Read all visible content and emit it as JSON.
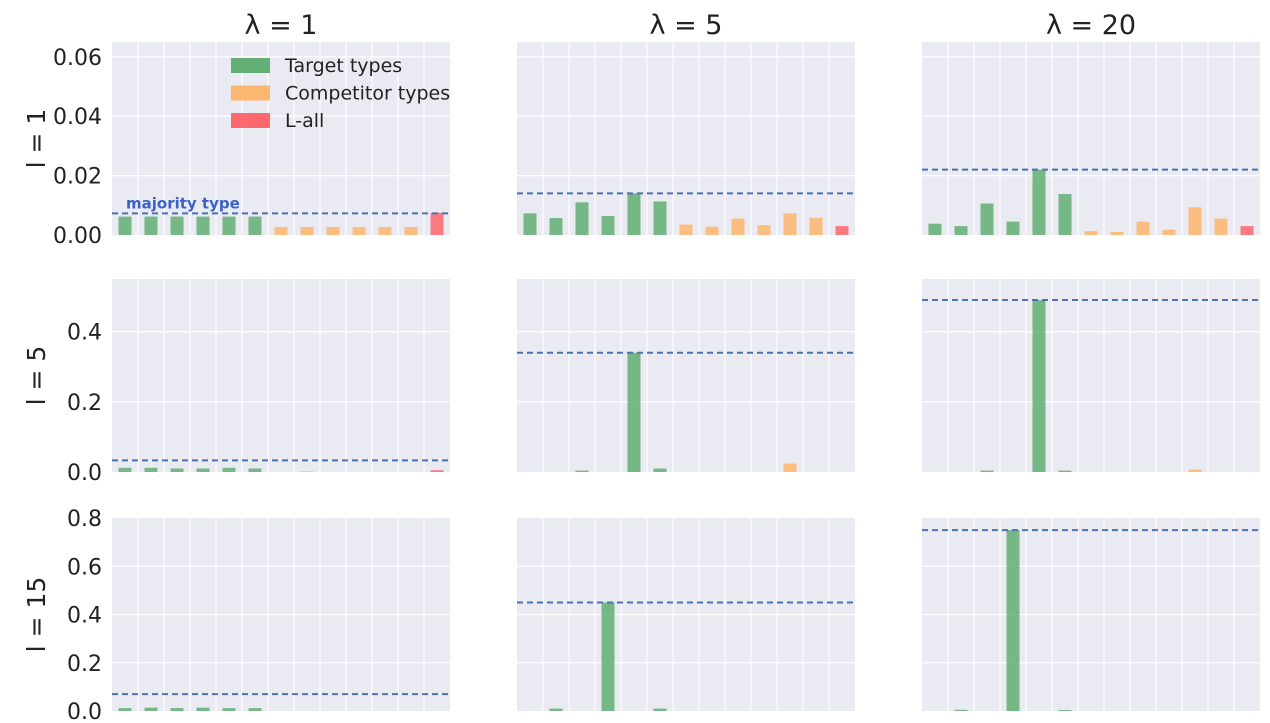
{
  "legend": {
    "items": [
      {
        "label": "Target types",
        "color": "#55a868"
      },
      {
        "label": "Competitor types",
        "color": "#ffb060"
      },
      {
        "label": "L-all",
        "color": "#ff5a5f"
      }
    ],
    "placement": "top-center of first panel"
  },
  "annotation": {
    "text": "majority type",
    "color": "#3a62c9"
  },
  "colors": {
    "target": "#55a868",
    "competitor": "#ffb060",
    "lall": "#ff5a5f",
    "refline": "#4c72b0",
    "panel_bg": "#eaeaf2",
    "grid": "#ffffff"
  },
  "col_titles": [
    "λ = 1",
    "λ = 5",
    "λ = 20"
  ],
  "row_labels": [
    "l = 1",
    "l = 5",
    "l = 15"
  ],
  "rows": [
    {
      "yticks": [
        "0.00",
        "0.02",
        "0.04",
        "0.06"
      ],
      "tick_values": [
        0,
        0.02,
        0.04,
        0.06
      ],
      "ylim": [
        0,
        0.065
      ]
    },
    {
      "yticks": [
        "0.0",
        "0.2",
        "0.4"
      ],
      "tick_values": [
        0,
        0.2,
        0.4
      ],
      "ylim": [
        0,
        0.55
      ]
    },
    {
      "yticks": [
        "0.0",
        "0.2",
        "0.4",
        "0.6",
        "0.8"
      ],
      "tick_values": [
        0,
        0.2,
        0.4,
        0.6,
        0.8
      ],
      "ylim": [
        0,
        0.8
      ]
    }
  ],
  "chart_data": {
    "type": "bar",
    "grid": true,
    "categories": 13,
    "category_groups": [
      "Target types",
      "Target types",
      "Target types",
      "Target types",
      "Target types",
      "Target types",
      "Competitor types",
      "Competitor types",
      "Competitor types",
      "Competitor types",
      "Competitor types",
      "Competitor types",
      "L-all"
    ],
    "panels": [
      {
        "row": 0,
        "col": 0,
        "majority": 0.0073,
        "values": [
          0.0062,
          0.0062,
          0.0062,
          0.0062,
          0.0062,
          0.0062,
          0.0027,
          0.0027,
          0.0027,
          0.0027,
          0.0027,
          0.0027,
          0.0075
        ]
      },
      {
        "row": 0,
        "col": 1,
        "majority": 0.014,
        "values": [
          0.0073,
          0.0057,
          0.011,
          0.0064,
          0.014,
          0.0113,
          0.0035,
          0.0028,
          0.0055,
          0.0033,
          0.0073,
          0.0058,
          0.003
        ]
      },
      {
        "row": 0,
        "col": 2,
        "majority": 0.022,
        "values": [
          0.0038,
          0.003,
          0.0106,
          0.0045,
          0.022,
          0.0138,
          0.0013,
          0.001,
          0.0045,
          0.0018,
          0.0093,
          0.0055,
          0.003
        ]
      },
      {
        "row": 1,
        "col": 0,
        "majority": 0.033,
        "values": [
          0.012,
          0.012,
          0.01,
          0.01,
          0.012,
          0.01,
          0,
          0.002,
          0,
          0,
          0,
          0,
          0.005
        ]
      },
      {
        "row": 1,
        "col": 1,
        "majority": 0.34,
        "values": [
          0,
          0,
          0.004,
          0,
          0.34,
          0.01,
          0,
          0,
          0,
          0,
          0.024,
          0,
          0
        ]
      },
      {
        "row": 1,
        "col": 2,
        "majority": 0.49,
        "values": [
          0,
          0,
          0.004,
          0,
          0.49,
          0.004,
          0,
          0,
          0,
          0,
          0.007,
          0,
          0
        ]
      },
      {
        "row": 2,
        "col": 0,
        "majority": 0.07,
        "values": [
          0.012,
          0.014,
          0.012,
          0.014,
          0.012,
          0.012,
          0,
          0,
          0,
          0,
          0,
          0,
          0
        ]
      },
      {
        "row": 2,
        "col": 1,
        "majority": 0.45,
        "values": [
          0,
          0.01,
          0,
          0.45,
          0,
          0.01,
          0,
          0,
          0,
          0,
          0,
          0,
          0
        ]
      },
      {
        "row": 2,
        "col": 2,
        "majority": 0.75,
        "values": [
          0,
          0.005,
          0,
          0.75,
          0,
          0.004,
          0,
          0,
          0,
          0,
          0,
          0,
          0
        ]
      }
    ]
  }
}
